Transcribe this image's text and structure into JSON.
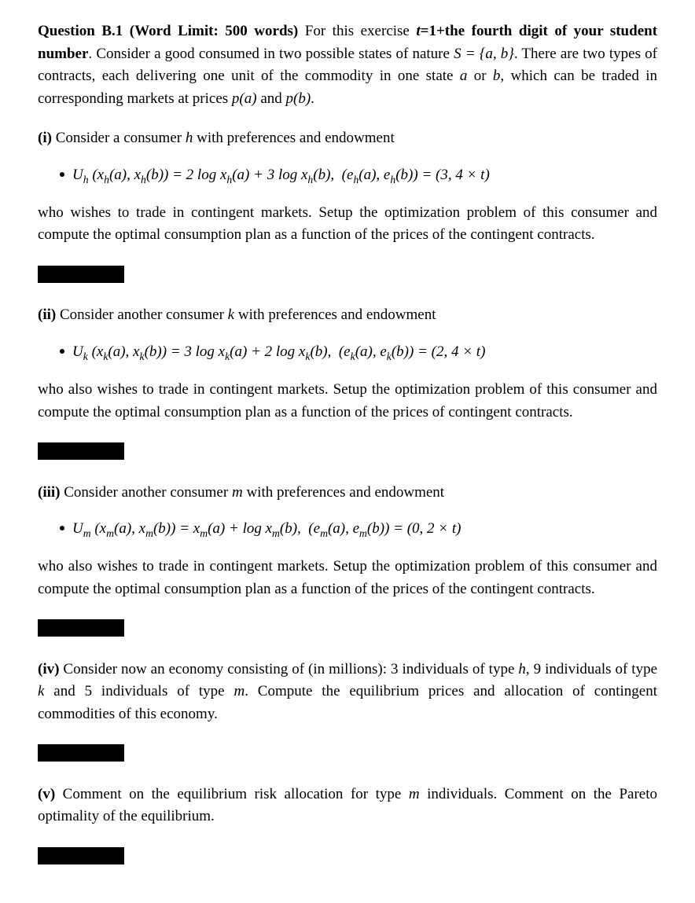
{
  "question": {
    "header_bold_1": "Question B.1 (Word Limit: 500 words)",
    "t_def": "For this exercise ",
    "t_def_bold": "t=1+the fourth digit of your student number",
    "intro_1": ". Consider a good consumed in two possible states of nature ",
    "intro_math_S": "S = {a, b}",
    "intro_2": ". There are two types of contracts, each delivering one unit of the commodity in one state ",
    "intro_a": "a",
    "intro_or": " or ",
    "intro_b": "b",
    "intro_3": ", which can be traded in corresponding markets at prices ",
    "intro_pa": "p(a)",
    "intro_and": " and ",
    "intro_pb": "p(b)",
    "intro_end": "."
  },
  "part_i": {
    "label": "(i)",
    "text_1": " Consider a consumer ",
    "var_h": "h",
    "text_2": " with preferences and endowment",
    "formula": "Uₕ (xₕ(a), xₕ(b)) = 2 log xₕ(a) + 3 log xₕ(b),  (eₕ(a), eₕ(b)) = (3, 4 × t)",
    "follow": "who wishes to trade in contingent markets. Setup the optimization problem of this consumer and compute the optimal consumption plan as a function of the prices of the contingent contracts."
  },
  "part_ii": {
    "label": "(ii)",
    "text_1": " Consider another consumer ",
    "var_k": "k",
    "text_2": " with preferences and endowment",
    "formula": "Uₖ (xₖ(a), xₖ(b)) = 3 log xₖ(a) + 2 log xₖ(b),  (eₖ(a), eₖ(b)) = (2, 4 × t)",
    "follow": "who also wishes to trade in contingent markets. Setup the optimization problem of this consumer and compute the optimal consumption plan as a function of the prices of contingent contracts."
  },
  "part_iii": {
    "label": "(iii)",
    "text_1": " Consider another consumer ",
    "var_m": "m",
    "text_2": " with preferences and endowment",
    "formula": "Uₘ (xₘ(a), xₘ(b)) = xₘ(a) + log xₘ(b),  (eₘ(a), eₘ(b)) = (0, 2 × t)",
    "follow": "who also wishes to trade in contingent markets. Setup the optimization problem of this consumer and compute the optimal consumption plan as a function of the prices of the contingent contracts."
  },
  "part_iv": {
    "label": "(iv)",
    "text": " Consider now an economy consisting of (in millions): 3 individuals of type ",
    "h": "h",
    "text2": ", 9 individuals of type ",
    "k": "k",
    "text3": " and 5 individuals of type ",
    "m": "m",
    "text4": ". Compute the equilibrium prices and allocation of contingent commodities of this economy."
  },
  "part_v": {
    "label": "(v)",
    "text": " Comment on the equilibrium risk allocation for type ",
    "m": "m",
    "text2": " individuals. Comment on the Pareto optimality of the equilibrium."
  }
}
